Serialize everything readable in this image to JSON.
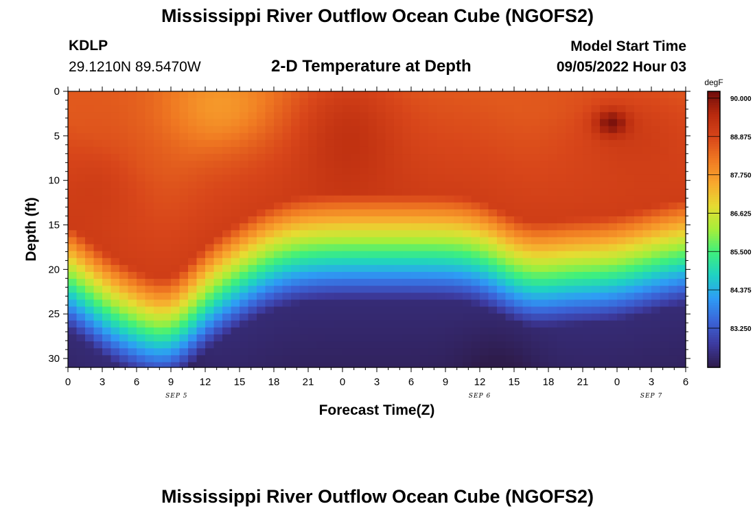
{
  "header": {
    "title": "Mississippi River Outflow Ocean Cube (NGOFS2)",
    "station_id": "KDLP",
    "coordinates": "29.1210N  89.5470W",
    "subtitle": "2-D Temperature at Depth",
    "model_start_label": "Model Start Time",
    "model_start_value": "09/05/2022 Hour 03"
  },
  "footer": {
    "title": "Mississippi River Outflow Ocean Cube (NGOFS2)"
  },
  "chart_data": {
    "type": "heatmap",
    "title": "2-D Temperature at Depth",
    "xlabel": "Forecast Time(Z)",
    "ylabel": "Depth (ft)",
    "x_range_hours": [
      0,
      54
    ],
    "y_range_ft": [
      0,
      31
    ],
    "x_tick_labels": [
      "0",
      "3",
      "6",
      "9",
      "12",
      "15",
      "18",
      "21",
      "0",
      "3",
      "6",
      "9",
      "12",
      "15",
      "18",
      "21",
      "0",
      "3",
      "6"
    ],
    "x_date_labels": [
      {
        "label": "SEP 5",
        "hour": 9.5
      },
      {
        "label": "SEP 6",
        "hour": 36
      },
      {
        "label": "SEP 7",
        "hour": 51
      }
    ],
    "y_ticks": [
      0,
      5,
      10,
      15,
      20,
      25,
      30
    ],
    "colorbar": {
      "unit": "degF",
      "min": 82.1,
      "max": 90.2,
      "tick_labels": [
        "90.000",
        "88.875",
        "87.750",
        "86.625",
        "85.500",
        "84.375",
        "83.250"
      ],
      "tick_values": [
        90.0,
        88.875,
        87.75,
        86.625,
        85.5,
        84.375,
        83.25
      ]
    },
    "colors": {
      "stops": [
        "#2e1b4a",
        "#3d3a9e",
        "#3b64d8",
        "#2e9cf5",
        "#1fd1c4",
        "#3ff07c",
        "#a6ee3a",
        "#e6dc32",
        "#f8a82e",
        "#f07a22",
        "#d8461a",
        "#b82a0e",
        "#6e0c0c"
      ]
    },
    "grid": false
  }
}
